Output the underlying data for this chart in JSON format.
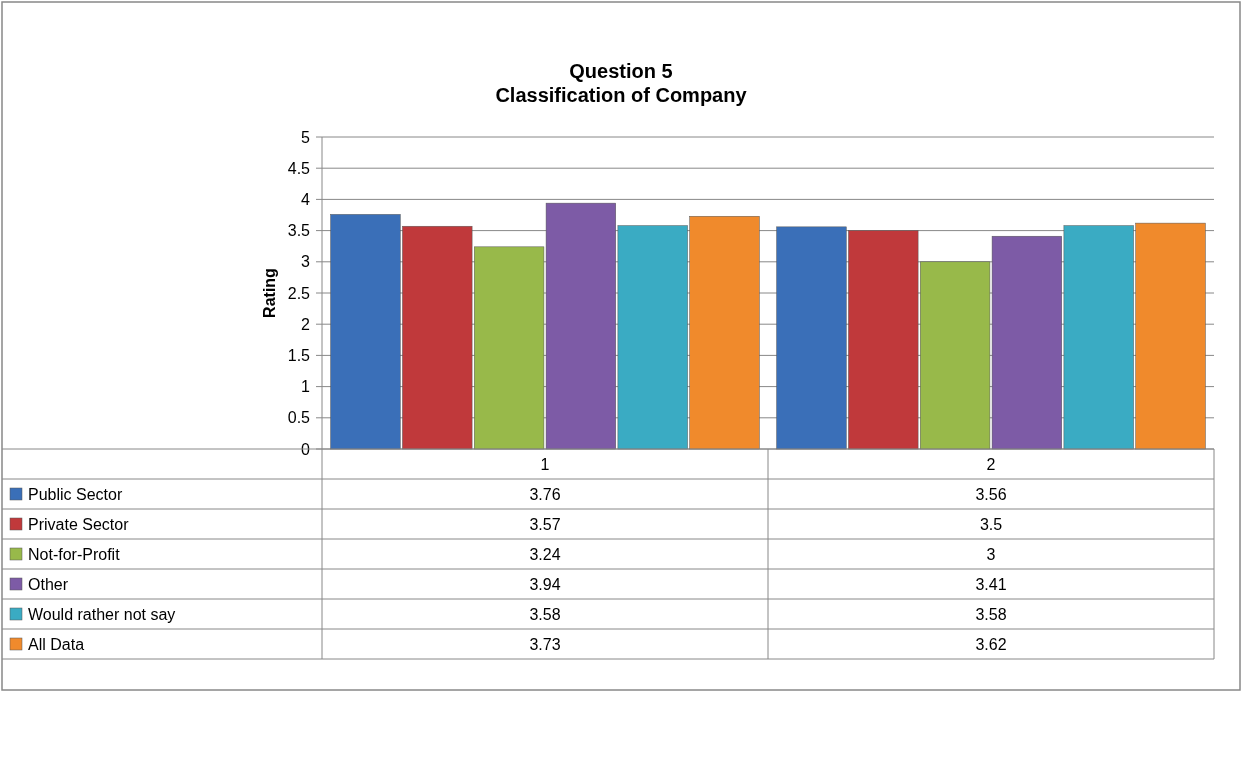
{
  "chart_data": {
    "type": "bar",
    "title": "Question 5\nClassification of Company",
    "ylabel": "Rating",
    "categories": [
      "1",
      "2"
    ],
    "series": [
      {
        "name": "Public Sector",
        "color": "#3a6fb8",
        "values": [
          3.76,
          3.56
        ]
      },
      {
        "name": "Private Sector",
        "color": "#c0393b",
        "values": [
          3.57,
          3.5
        ]
      },
      {
        "name": "Not-for-Profit",
        "color": "#98b94a",
        "values": [
          3.24,
          3
        ]
      },
      {
        "name": "Other",
        "color": "#7d5ba6",
        "values": [
          3.94,
          3.41
        ]
      },
      {
        "name": "Would rather not say",
        "color": "#3aabc3",
        "values": [
          3.58,
          3.58
        ]
      },
      {
        "name": "All Data",
        "color": "#f08a2c",
        "values": [
          3.73,
          3.62
        ]
      }
    ],
    "ylim": [
      0,
      5
    ],
    "yticks": [
      0,
      0.5,
      1,
      1.5,
      2,
      2.5,
      3,
      3.5,
      4,
      4.5,
      5
    ],
    "grid": "y",
    "legend": "bottom",
    "data_labels": true
  }
}
